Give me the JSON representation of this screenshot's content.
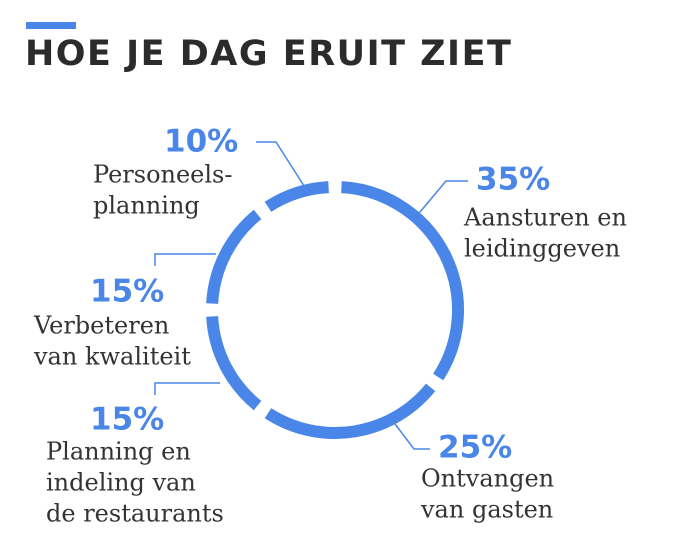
{
  "title": "HOE JE DAG ERUIT ZIET",
  "colors": {
    "accent": "#4a86e8",
    "title": "#2b2b2b",
    "text": "#333333"
  },
  "chart_data": {
    "type": "pie",
    "style": "segmented-ring",
    "title": "HOE JE DAG ERUIT ZIET",
    "slices": [
      {
        "value": 35,
        "pct_label": "35%",
        "lines": [
          "Aansturen en",
          "leidinggeven"
        ]
      },
      {
        "value": 25,
        "pct_label": "25%",
        "lines": [
          "Ontvangen",
          "van gasten"
        ]
      },
      {
        "value": 15,
        "pct_label": "15%",
        "lines": [
          "Planning en",
          "indeling van",
          "de restaurants"
        ]
      },
      {
        "value": 15,
        "pct_label": "15%",
        "lines": [
          "Verbeteren",
          "van kwaliteit"
        ]
      },
      {
        "value": 10,
        "pct_label": "10%",
        "lines": [
          "Personeels-",
          "planning"
        ]
      }
    ]
  }
}
